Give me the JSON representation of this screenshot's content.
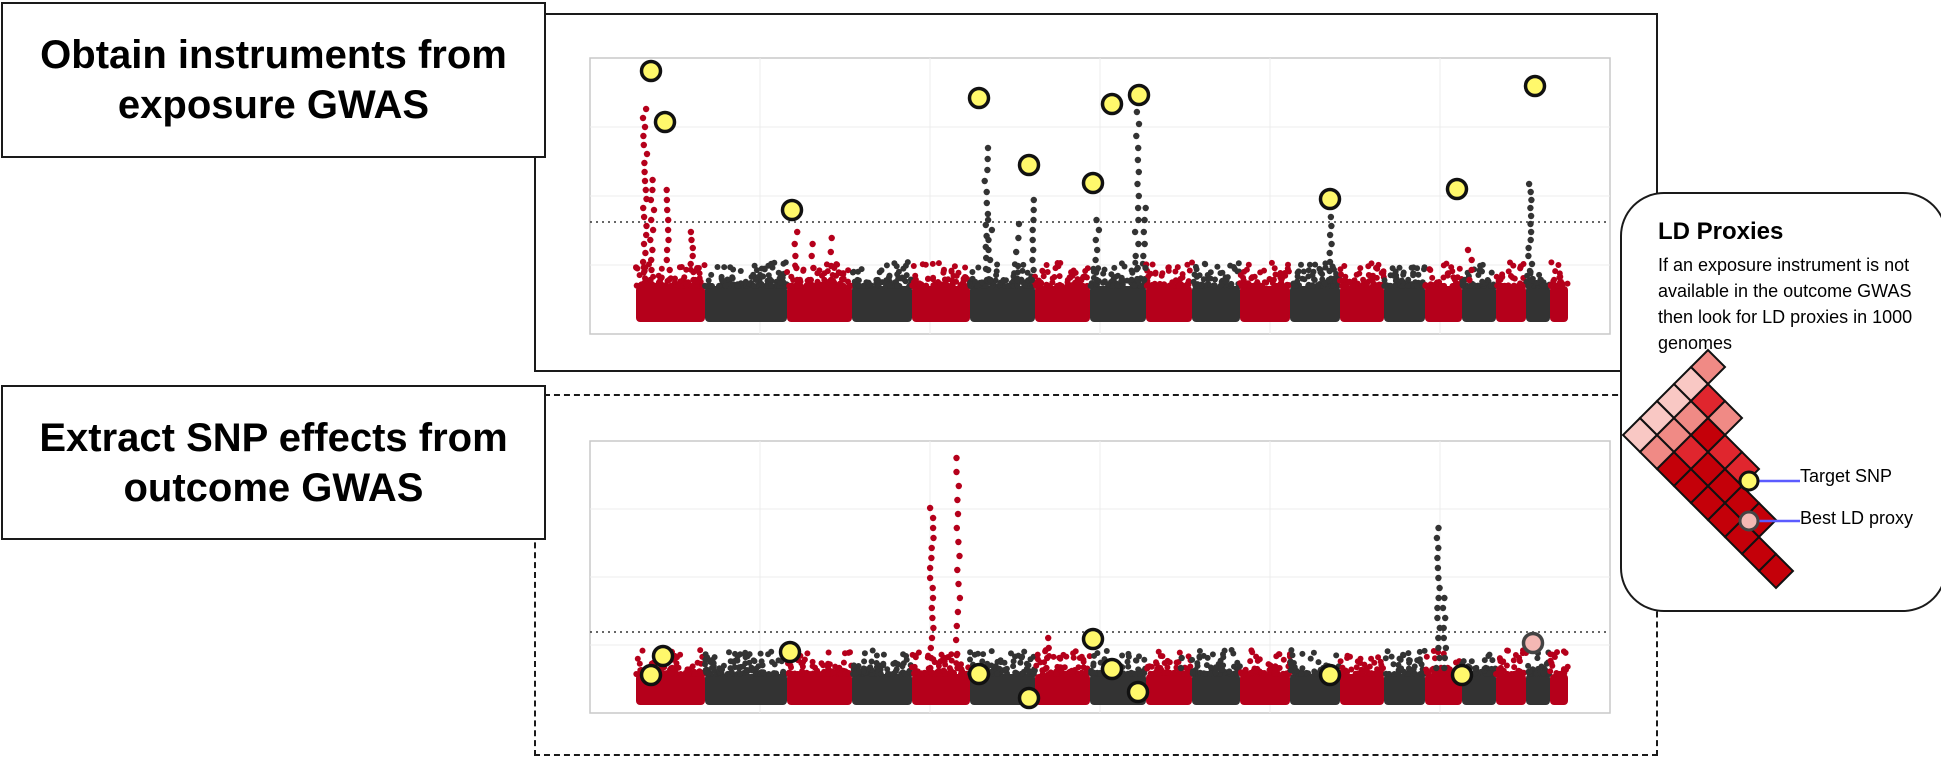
{
  "steps": {
    "exposure": {
      "line1": "Obtain instruments from",
      "line2": "exposure GWAS"
    },
    "outcome": {
      "line1": "Extract SNP effects from",
      "line2": "outcome GWAS"
    }
  },
  "ld_proxies": {
    "title": "LD Proxies",
    "description": "If an exposure instrument is not available in the outcome GWAS then look for LD proxies in 1000 genomes",
    "legend": {
      "target": "Target SNP",
      "proxy": "Best LD proxy"
    }
  },
  "colors": {
    "odd_chromosome": "#b5001b",
    "even_chromosome": "#333333",
    "instrument_marker": "#fff86b",
    "proxy_marker": "#f4b8b4",
    "legend_line": "#5b5bff",
    "ld_heatmap": [
      "#f9c8c4",
      "#f08a85",
      "#e0262e",
      "#c40009"
    ]
  },
  "icons": [
    "instrument-marker-icon",
    "proxy-marker-icon",
    "ld-heatmap-icon"
  ]
}
